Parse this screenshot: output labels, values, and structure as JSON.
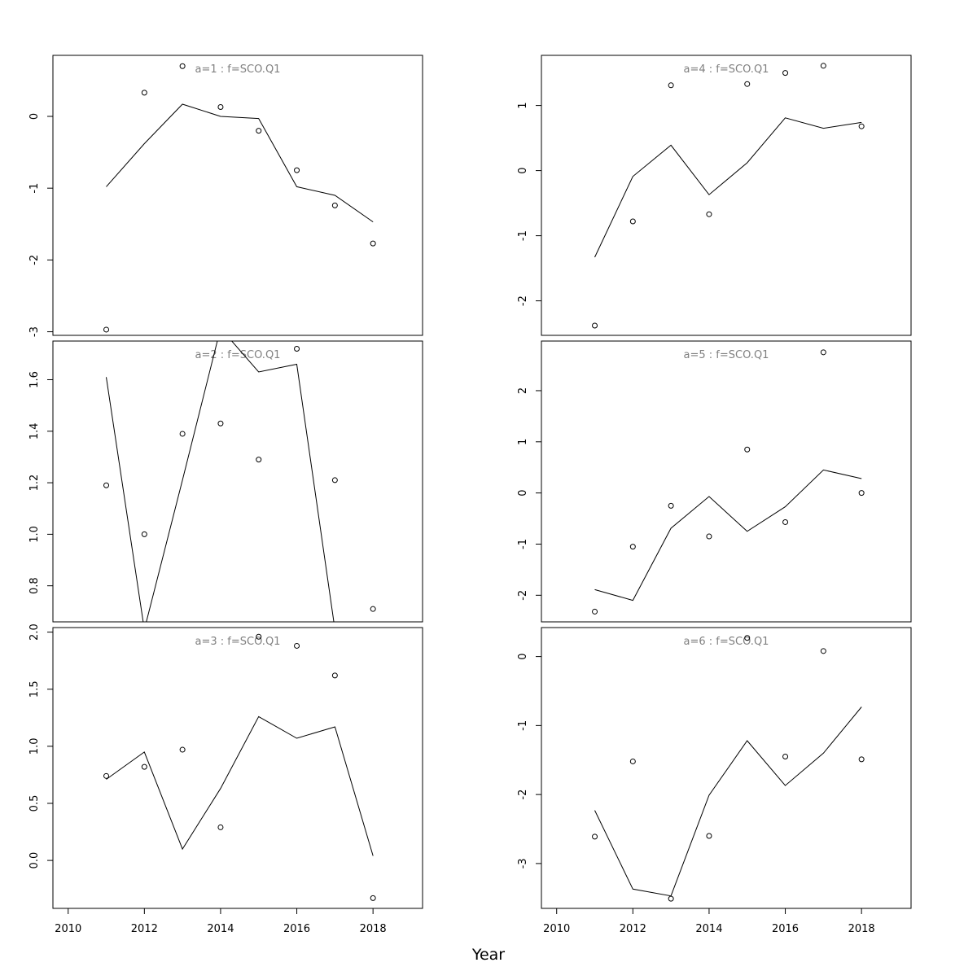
{
  "figure": {
    "xlabel": "Year",
    "colors": {
      "panel_title": "#808080",
      "line": "#000000",
      "points": "#000000",
      "frame": "#000000"
    }
  },
  "chart_data": [
    {
      "type": "line",
      "title": "a=1 : f=SCO.Q1",
      "x": [
        2011,
        2012,
        2013,
        2014,
        2015,
        2016,
        2017,
        2018
      ],
      "series": [
        {
          "values": [
            -0.98,
            -0.38,
            0.17,
            0.0,
            -0.03,
            -0.98,
            -1.1,
            -1.47
          ]
        },
        {
          "values": [
            -2.97,
            0.33,
            0.7,
            0.13,
            -0.2,
            -0.75,
            -1.24,
            -1.77
          ],
          "marker": "circle"
        }
      ],
      "ylim": [
        -3.05,
        0.85
      ],
      "yticks": [
        "0",
        "-1",
        "-2",
        "-3"
      ],
      "ytick_values": [
        0,
        -1,
        -2,
        -3
      ],
      "xlim": [
        2009.6,
        2019.3
      ],
      "xticks": [],
      "xtick_values": []
    },
    {
      "type": "line",
      "title": "a=2 : f=SCO.Q1",
      "x": [
        2011,
        2012,
        2013,
        2014,
        2015,
        2016,
        2017,
        2018
      ],
      "series": [
        {
          "values": [
            1.61,
            0.63,
            1.21,
            1.8,
            1.63,
            1.66,
            0.63,
            null
          ]
        },
        {
          "values": [
            1.19,
            1.0,
            1.39,
            1.43,
            1.29,
            1.72,
            1.21,
            0.71
          ],
          "marker": "circle"
        }
      ],
      "ylim": [
        0.66,
        1.75
      ],
      "yticks": [
        "0.8",
        "1.0",
        "1.2",
        "1.4",
        "1.6"
      ],
      "ytick_values": [
        0.8,
        1.0,
        1.2,
        1.4,
        1.6
      ],
      "xlim": [
        2009.6,
        2019.3
      ],
      "xticks": [],
      "xtick_values": []
    },
    {
      "type": "line",
      "title": "a=3 : f=SCO.Q1",
      "x": [
        2011,
        2012,
        2013,
        2014,
        2015,
        2016,
        2017,
        2018
      ],
      "series": [
        {
          "values": [
            0.71,
            0.95,
            0.1,
            0.63,
            1.26,
            1.07,
            1.17,
            0.04
          ]
        },
        {
          "values": [
            0.74,
            0.82,
            0.97,
            0.29,
            1.96,
            1.88,
            1.62,
            -0.33
          ],
          "marker": "circle"
        }
      ],
      "ylim": [
        -0.42,
        2.04
      ],
      "yticks": [
        "0.0",
        "0.5",
        "1.0",
        "1.5",
        "2.0"
      ],
      "ytick_values": [
        0.0,
        0.5,
        1.0,
        1.5,
        2.0
      ],
      "xlim": [
        2009.6,
        2019.3
      ],
      "xticks": [
        "2010",
        "2012",
        "2014",
        "2016",
        "2018"
      ],
      "xtick_values": [
        2010,
        2012,
        2014,
        2016,
        2018
      ]
    },
    {
      "type": "line",
      "title": "a=4 : f=SCO.Q1",
      "x": [
        2011,
        2012,
        2013,
        2014,
        2015,
        2016,
        2017,
        2018
      ],
      "series": [
        {
          "values": [
            -1.33,
            -0.09,
            0.39,
            -0.37,
            0.12,
            0.81,
            0.65,
            0.74
          ]
        },
        {
          "values": [
            -2.38,
            -0.78,
            1.31,
            -0.67,
            1.33,
            1.5,
            1.61,
            0.68
          ],
          "marker": "circle"
        }
      ],
      "ylim": [
        -2.53,
        1.77
      ],
      "yticks": [
        "1",
        "0",
        "-1",
        "-2"
      ],
      "ytick_values": [
        1,
        0,
        -1,
        -2
      ],
      "xlim": [
        2009.6,
        2019.3
      ],
      "xticks": [],
      "xtick_values": []
    },
    {
      "type": "line",
      "title": "a=5 : f=SCO.Q1",
      "x": [
        2011,
        2012,
        2013,
        2014,
        2015,
        2016,
        2017,
        2018
      ],
      "series": [
        {
          "values": [
            -1.89,
            -2.1,
            -0.69,
            -0.07,
            -0.75,
            -0.27,
            0.45,
            0.28
          ]
        },
        {
          "values": [
            -2.32,
            -1.05,
            -0.25,
            -0.85,
            0.85,
            -0.57,
            2.75,
            0.0
          ],
          "marker": "circle"
        }
      ],
      "ylim": [
        -2.52,
        2.97
      ],
      "yticks": [
        "2",
        "1",
        "0",
        "-1",
        "-2"
      ],
      "ytick_values": [
        2,
        1,
        0,
        -1,
        -2
      ],
      "xlim": [
        2009.6,
        2019.3
      ],
      "xticks": [],
      "xtick_values": []
    },
    {
      "type": "line",
      "title": "a=6 : f=SCO.Q1",
      "x": [
        2011,
        2012,
        2013,
        2014,
        2015,
        2016,
        2017,
        2018
      ],
      "series": [
        {
          "values": [
            -2.23,
            -3.37,
            -3.47,
            -2.01,
            -1.22,
            -1.87,
            -1.4,
            -0.73
          ]
        },
        {
          "values": [
            -2.61,
            -1.52,
            -3.51,
            -2.6,
            0.27,
            -1.45,
            0.08,
            -1.49
          ],
          "marker": "circle"
        }
      ],
      "ylim": [
        -3.65,
        0.42
      ],
      "yticks": [
        "0",
        "-1",
        "-2",
        "-3"
      ],
      "ytick_values": [
        0,
        -1,
        -2,
        -3
      ],
      "xlim": [
        2009.6,
        2019.3
      ],
      "xticks": [
        "2010",
        "2012",
        "2014",
        "2016",
        "2018"
      ],
      "xtick_values": [
        2010,
        2012,
        2014,
        2016,
        2018
      ]
    }
  ]
}
